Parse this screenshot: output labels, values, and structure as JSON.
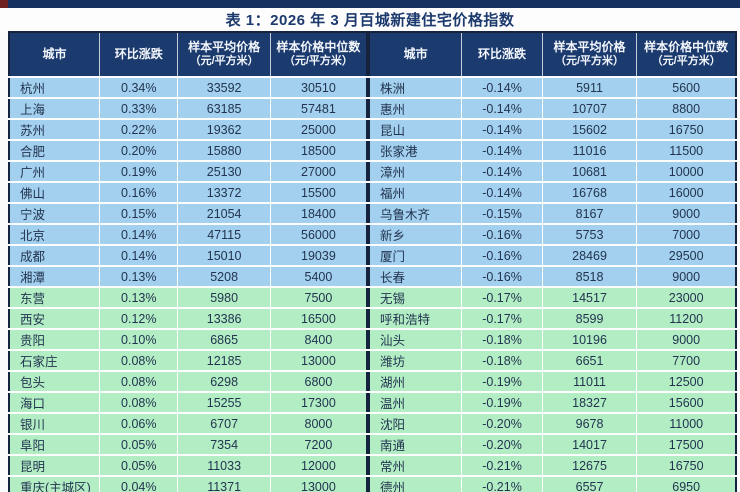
{
  "page": {
    "title": "表 1：2026 年 3 月百城新建住宅价格指数"
  },
  "columns": [
    {
      "label": "城市",
      "sub": ""
    },
    {
      "label": "环比涨跌",
      "sub": ""
    },
    {
      "label": "样本平均价格",
      "sub": "（元/平方米）"
    },
    {
      "label": "样本价格中位数",
      "sub": "（元/平方米）"
    }
  ],
  "left_table": {
    "rows": [
      {
        "city": "杭州",
        "change": "0.34%",
        "avg": "33592",
        "median": "30510",
        "group": "blue"
      },
      {
        "city": "上海",
        "change": "0.33%",
        "avg": "63185",
        "median": "57481",
        "group": "blue"
      },
      {
        "city": "苏州",
        "change": "0.22%",
        "avg": "19362",
        "median": "25000",
        "group": "blue"
      },
      {
        "city": "合肥",
        "change": "0.20%",
        "avg": "15880",
        "median": "18500",
        "group": "blue"
      },
      {
        "city": "广州",
        "change": "0.19%",
        "avg": "25130",
        "median": "27000",
        "group": "blue"
      },
      {
        "city": "佛山",
        "change": "0.16%",
        "avg": "13372",
        "median": "15500",
        "group": "blue"
      },
      {
        "city": "宁波",
        "change": "0.15%",
        "avg": "21054",
        "median": "18400",
        "group": "blue"
      },
      {
        "city": "北京",
        "change": "0.14%",
        "avg": "47115",
        "median": "56000",
        "group": "blue"
      },
      {
        "city": "成都",
        "change": "0.14%",
        "avg": "15010",
        "median": "19039",
        "group": "blue"
      },
      {
        "city": "湘潭",
        "change": "0.13%",
        "avg": "5208",
        "median": "5400",
        "group": "blue"
      },
      {
        "city": "东营",
        "change": "0.13%",
        "avg": "5980",
        "median": "7500",
        "group": "green"
      },
      {
        "city": "西安",
        "change": "0.12%",
        "avg": "13386",
        "median": "16500",
        "group": "green"
      },
      {
        "city": "贵阳",
        "change": "0.10%",
        "avg": "6865",
        "median": "8400",
        "group": "green"
      },
      {
        "city": "石家庄",
        "change": "0.08%",
        "avg": "12185",
        "median": "13000",
        "group": "green"
      },
      {
        "city": "包头",
        "change": "0.08%",
        "avg": "6298",
        "median": "6800",
        "group": "green"
      },
      {
        "city": "海口",
        "change": "0.08%",
        "avg": "15255",
        "median": "17300",
        "group": "green"
      },
      {
        "city": "银川",
        "change": "0.06%",
        "avg": "6707",
        "median": "8000",
        "group": "green"
      },
      {
        "city": "阜阳",
        "change": "0.05%",
        "avg": "7354",
        "median": "7200",
        "group": "green"
      },
      {
        "city": "昆明",
        "change": "0.05%",
        "avg": "11033",
        "median": "12000",
        "group": "green"
      },
      {
        "city": "重庆(主城区)",
        "change": "0.04%",
        "avg": "11371",
        "median": "13000",
        "group": "green"
      }
    ]
  },
  "right_table": {
    "rows": [
      {
        "city": "株洲",
        "change": "-0.14%",
        "avg": "5911",
        "median": "5600",
        "group": "blue"
      },
      {
        "city": "惠州",
        "change": "-0.14%",
        "avg": "10707",
        "median": "8800",
        "group": "blue"
      },
      {
        "city": "昆山",
        "change": "-0.14%",
        "avg": "15602",
        "median": "16750",
        "group": "blue"
      },
      {
        "city": "张家港",
        "change": "-0.14%",
        "avg": "11016",
        "median": "11500",
        "group": "blue"
      },
      {
        "city": "漳州",
        "change": "-0.14%",
        "avg": "10681",
        "median": "10000",
        "group": "blue"
      },
      {
        "city": "福州",
        "change": "-0.14%",
        "avg": "16768",
        "median": "16000",
        "group": "blue"
      },
      {
        "city": "乌鲁木齐",
        "change": "-0.15%",
        "avg": "8167",
        "median": "9000",
        "group": "blue"
      },
      {
        "city": "新乡",
        "change": "-0.16%",
        "avg": "5753",
        "median": "7000",
        "group": "blue"
      },
      {
        "city": "厦门",
        "change": "-0.16%",
        "avg": "28469",
        "median": "29500",
        "group": "blue"
      },
      {
        "city": "长春",
        "change": "-0.16%",
        "avg": "8518",
        "median": "9000",
        "group": "blue"
      },
      {
        "city": "无锡",
        "change": "-0.17%",
        "avg": "14517",
        "median": "23000",
        "group": "green"
      },
      {
        "city": "呼和浩特",
        "change": "-0.17%",
        "avg": "8599",
        "median": "11200",
        "group": "green"
      },
      {
        "city": "汕头",
        "change": "-0.18%",
        "avg": "10196",
        "median": "9000",
        "group": "green"
      },
      {
        "city": "潍坊",
        "change": "-0.18%",
        "avg": "6651",
        "median": "7700",
        "group": "green"
      },
      {
        "city": "湖州",
        "change": "-0.19%",
        "avg": "11011",
        "median": "12500",
        "group": "green"
      },
      {
        "city": "温州",
        "change": "-0.19%",
        "avg": "18327",
        "median": "15600",
        "group": "green"
      },
      {
        "city": "沈阳",
        "change": "-0.20%",
        "avg": "9678",
        "median": "11000",
        "group": "green"
      },
      {
        "city": "南通",
        "change": "-0.20%",
        "avg": "14017",
        "median": "17500",
        "group": "green"
      },
      {
        "city": "常州",
        "change": "-0.21%",
        "avg": "12675",
        "median": "16750",
        "group": "green"
      },
      {
        "city": "德州",
        "change": "-0.21%",
        "avg": "6557",
        "median": "6950",
        "group": "green"
      }
    ]
  },
  "colors": {
    "top_bar": "#163060",
    "corner_mark": "#6e2020",
    "title_text": "#1c3a6e",
    "header_bg": "#1b3a6e",
    "header_text": "#f2f6fb",
    "row_blue": "#a2d0ee",
    "row_green": "#b3edc4",
    "cell_text": "#223450",
    "table_border": "#16233f",
    "page_bg": "#fbfbfb"
  }
}
